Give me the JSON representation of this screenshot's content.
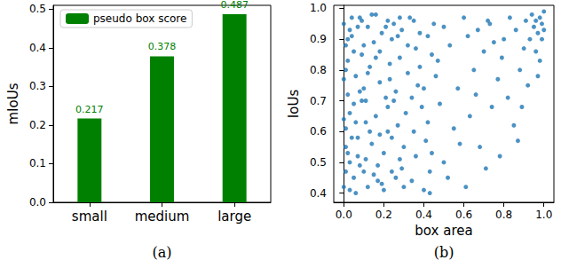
{
  "chart_data": [
    {
      "type": "bar",
      "caption": "(a)",
      "y_label": "mIoUs",
      "categories": [
        "small",
        "medium",
        "large"
      ],
      "series": [
        {
          "name": "pseudo box score",
          "color": "#008000",
          "values": [
            0.217,
            0.378,
            0.487
          ]
        }
      ],
      "ylim": [
        0,
        0.51
      ],
      "yticks": [
        {
          "value": 0,
          "label": "0.0"
        },
        0.1,
        0.2,
        0.3,
        0.4,
        0.5
      ],
      "grid": false,
      "legend": "upper left",
      "data_labels": true
    },
    {
      "type": "scatter",
      "caption": "(b)",
      "x_label": "box area",
      "y_label": "IoUs",
      "color": "#1f77b4",
      "marker": "circle",
      "x": [
        0.0,
        0.01,
        0.02,
        0.01,
        0.03,
        0.0,
        0.02,
        0.04,
        0.01,
        0.03,
        0.05,
        0.06,
        0.04,
        0.07,
        0.05,
        0.08,
        0.06,
        0.09,
        0.07,
        0.1,
        0.11,
        0.12,
        0.1,
        0.13,
        0.14,
        0.12,
        0.15,
        0.11,
        0.16,
        0.13,
        0.17,
        0.18,
        0.16,
        0.19,
        0.2,
        0.18,
        0.21,
        0.17,
        0.22,
        0.2,
        0.23,
        0.24,
        0.22,
        0.25,
        0.26,
        0.24,
        0.27,
        0.23,
        0.28,
        0.26,
        0.29,
        0.3,
        0.28,
        0.31,
        0.32,
        0.3,
        0.33,
        0.29,
        0.34,
        0.32,
        0.35,
        0.36,
        0.34,
        0.37,
        0.38,
        0.36,
        0.39,
        0.35,
        0.4,
        0.38,
        0.41,
        0.42,
        0.4,
        0.43,
        0.44,
        0.42,
        0.45,
        0.43,
        0.46,
        0.44,
        0.48,
        0.5,
        0.52,
        0.47,
        0.55,
        0.53,
        0.57,
        0.5,
        0.6,
        0.58,
        0.62,
        0.63,
        0.65,
        0.61,
        0.67,
        0.68,
        0.7,
        0.66,
        0.72,
        0.71,
        0.74,
        0.75,
        0.77,
        0.73,
        0.78,
        0.8,
        0.82,
        0.79,
        0.83,
        0.85,
        0.86,
        0.88,
        0.87,
        0.9,
        0.91,
        0.89,
        0.93,
        0.92,
        0.95,
        0.94,
        0.96,
        0.97,
        0.98,
        0.99,
        1.0,
        0.97,
        0.99,
        1.0,
        0.98,
        0.96,
        0.0,
        0.01,
        0.02,
        0.0,
        0.03,
        0.01,
        0.04,
        0.02,
        0.05,
        0.03,
        0.06,
        0.08,
        0.09,
        0.07,
        0.1,
        0.08,
        0.11,
        0.09,
        0.12,
        0.14,
        0.15,
        0.16,
        0.18,
        0.19,
        0.21,
        0.22,
        0.24,
        0.25,
        0.27,
        0.28
      ],
      "values": [
        0.95,
        0.88,
        0.72,
        0.61,
        0.5,
        0.42,
        0.83,
        0.97,
        0.55,
        0.66,
        0.45,
        0.78,
        0.91,
        0.58,
        0.69,
        0.97,
        0.4,
        0.85,
        0.52,
        0.74,
        0.63,
        0.94,
        0.47,
        0.81,
        0.56,
        0.42,
        0.89,
        0.7,
        0.98,
        0.6,
        0.44,
        0.76,
        0.65,
        0.92,
        0.53,
        0.86,
        0.71,
        0.49,
        0.96,
        0.41,
        0.82,
        0.58,
        0.68,
        0.95,
        0.45,
        0.9,
        0.62,
        0.77,
        0.51,
        0.73,
        0.93,
        0.42,
        0.84,
        0.66,
        0.79,
        0.55,
        0.97,
        0.48,
        0.71,
        0.88,
        0.6,
        0.87,
        0.44,
        0.75,
        0.92,
        0.52,
        0.68,
        0.96,
        0.41,
        0.81,
        0.57,
        0.91,
        0.74,
        0.47,
        0.85,
        0.63,
        0.95,
        0.4,
        0.78,
        0.53,
        0.69,
        0.94,
        0.45,
        0.83,
        0.61,
        0.88,
        0.74,
        0.5,
        0.97,
        0.56,
        0.91,
        0.65,
        0.8,
        0.42,
        0.93,
        0.55,
        0.86,
        0.72,
        0.96,
        0.48,
        0.68,
        0.89,
        0.77,
        0.95,
        0.52,
        0.9,
        0.71,
        0.84,
        0.97,
        0.62,
        0.93,
        0.8,
        0.57,
        0.87,
        0.96,
        0.68,
        0.9,
        0.75,
        0.94,
        0.98,
        0.86,
        0.92,
        0.97,
        0.95,
        0.99,
        0.78,
        0.9,
        0.93,
        0.83,
        0.96,
        0.77,
        0.47,
        0.9,
        0.64,
        0.93,
        0.8,
        0.58,
        0.53,
        0.86,
        0.41,
        0.63,
        0.49,
        0.7,
        0.94,
        0.88,
        0.73,
        0.51,
        0.96,
        0.79,
        0.98,
        0.46,
        0.84,
        0.59,
        0.43,
        0.94,
        0.6,
        0.47,
        0.7,
        0.91,
        0.97
      ],
      "xlim": [
        -0.05,
        1.05
      ],
      "xticks": [
        {
          "value": 0,
          "label": "0.0"
        },
        0.2,
        0.4,
        0.6,
        0.8,
        {
          "value": 1,
          "label": "1.0"
        }
      ],
      "ylim": [
        0.37,
        1.01
      ],
      "yticks": [
        0.4,
        0.5,
        0.6,
        0.7,
        0.8,
        0.9,
        {
          "value": 1,
          "label": "1.0"
        }
      ],
      "grid": false
    }
  ]
}
